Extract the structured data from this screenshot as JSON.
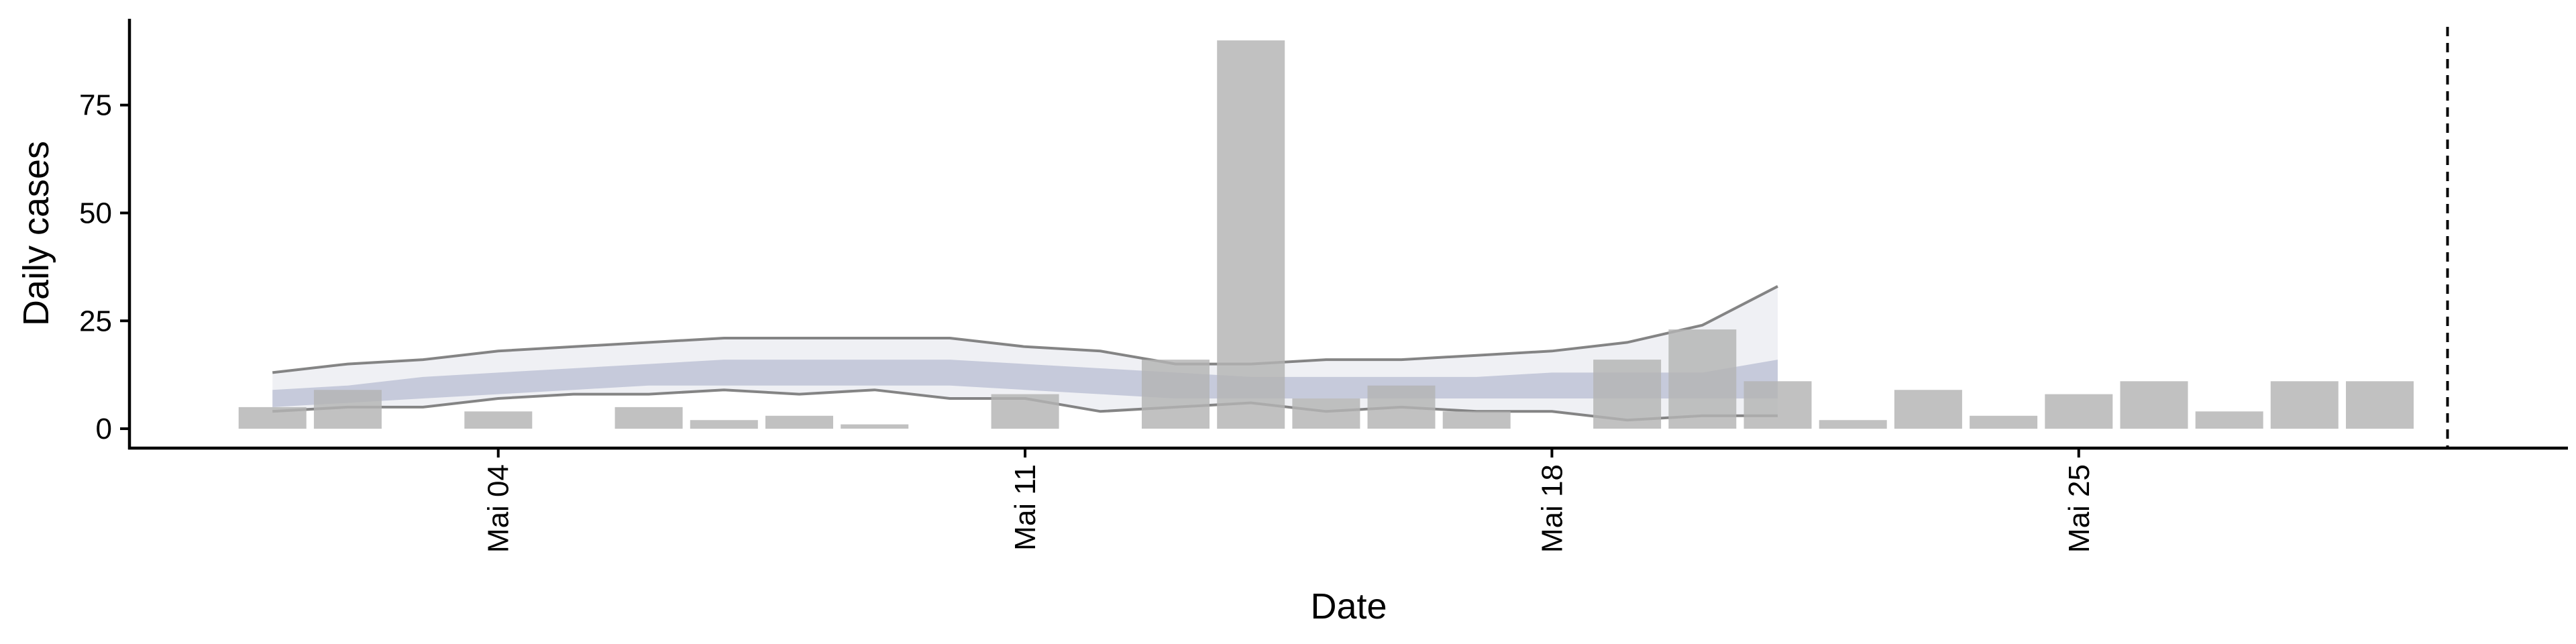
{
  "chart_data": {
    "type": "bar",
    "xlabel": "Date",
    "ylabel": "Daily cases",
    "x_tick_labels": [
      {
        "label": "Mai 04",
        "day": 4
      },
      {
        "label": "Mai 11",
        "day": 11
      },
      {
        "label": "Mai 18",
        "day": 18
      },
      {
        "label": "Mai 25",
        "day": 25
      }
    ],
    "y_ticks": [
      0,
      25,
      50,
      75
    ],
    "xlim_days": [
      -0.9,
      31.5
    ],
    "ylim": [
      -4.5,
      95
    ],
    "reference_line_day": 29.9,
    "bars": {
      "name": "Observed daily cases",
      "color": "#b3b3b3",
      "days": [
        1,
        2,
        4,
        6,
        7,
        8,
        9,
        11,
        13,
        14,
        15,
        16,
        17,
        19,
        20,
        21,
        22,
        23,
        24,
        25,
        26,
        27,
        28,
        29
      ],
      "values": [
        5,
        9,
        4,
        5,
        2,
        3,
        1,
        8,
        16,
        90,
        7,
        10,
        4,
        16,
        23,
        11,
        2,
        9,
        3,
        8,
        11,
        4,
        11,
        11
      ]
    },
    "estimate": {
      "days": [
        1,
        2,
        3,
        4,
        5,
        6,
        7,
        8,
        9,
        10,
        11,
        12,
        13,
        14,
        15,
        16,
        17,
        18,
        19,
        20,
        21
      ],
      "outer_lo": [
        4,
        5,
        5,
        7,
        8,
        8,
        9,
        8,
        9,
        7,
        7,
        4,
        5,
        6,
        4,
        5,
        4,
        4,
        2,
        3,
        3
      ],
      "outer_hi": [
        13,
        15,
        16,
        18,
        19,
        20,
        21,
        21,
        21,
        21,
        19,
        18,
        15,
        15,
        16,
        16,
        17,
        18,
        20,
        24,
        33
      ],
      "inner_lo": [
        5,
        6,
        7,
        8,
        9,
        10,
        10,
        10,
        10,
        10,
        9,
        8,
        7,
        7,
        7,
        7,
        7,
        7,
        7,
        7,
        7
      ],
      "inner_hi": [
        9,
        10,
        12,
        13,
        14,
        15,
        16,
        16,
        16,
        16,
        15,
        14,
        13,
        12,
        12,
        12,
        12,
        13,
        13,
        13,
        16
      ],
      "fill_outer_color": "#dfe1ea",
      "fill_inner_color": "#b8bdd3",
      "line_color": "#707070"
    }
  }
}
